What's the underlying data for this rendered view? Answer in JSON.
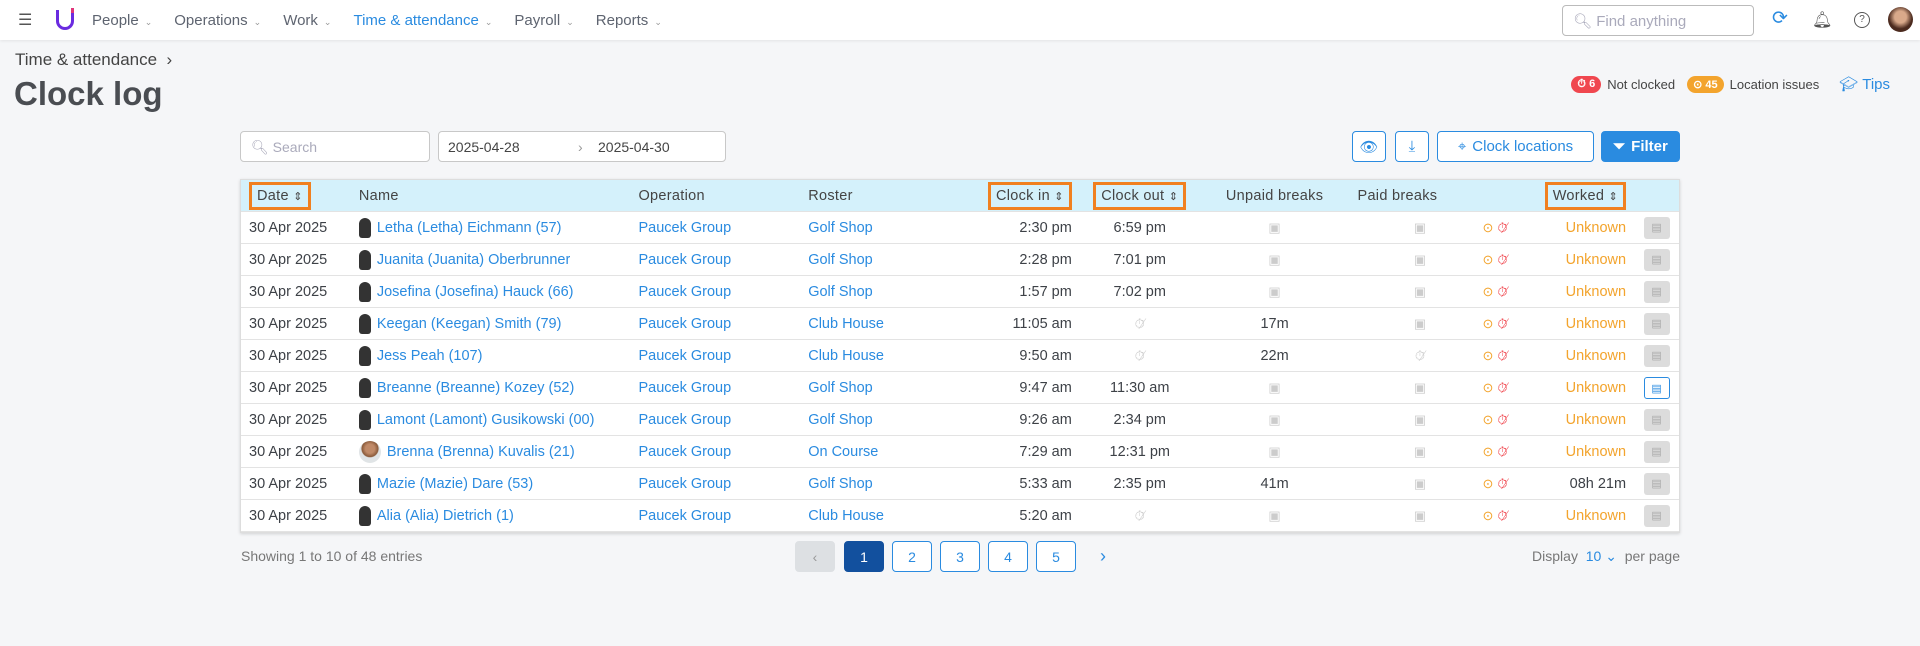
{
  "nav": {
    "items": [
      {
        "label": "People"
      },
      {
        "label": "Operations"
      },
      {
        "label": "Work"
      },
      {
        "label": "Time & attendance",
        "active": true
      },
      {
        "label": "Payroll"
      },
      {
        "label": "Reports"
      }
    ],
    "search_placeholder": "Find anything"
  },
  "breadcrumb": "Time & attendance",
  "page_title": "Clock log",
  "status": {
    "not_clocked_count": "6",
    "not_clocked_label": "Not clocked",
    "location_count": "45",
    "location_label": "Location issues",
    "tips": "Tips"
  },
  "toolbar": {
    "search_placeholder": "Search",
    "date_from": "2025-04-28",
    "date_to": "2025-04-30",
    "clock_locations": "Clock locations",
    "filter": "Filter"
  },
  "columns": [
    "Date",
    "Name",
    "Operation",
    "Roster",
    "Clock in",
    "Clock out",
    "Unpaid breaks",
    "Paid breaks",
    "Worked"
  ],
  "rows": [
    {
      "date": "30 Apr 2025",
      "name": "Letha (Letha) Eichmann (57)",
      "operation": "Paucek Group",
      "roster": "Golf Shop",
      "clock_in": "2:30 pm",
      "clock_out": "6:59 pm",
      "unpaid": "",
      "worked": "Unknown"
    },
    {
      "date": "30 Apr 2025",
      "name": "Juanita (Juanita) Oberbrunner",
      "operation": "Paucek Group",
      "roster": "Golf Shop",
      "clock_in": "2:28 pm",
      "clock_out": "7:01 pm",
      "unpaid": "",
      "worked": "Unknown"
    },
    {
      "date": "30 Apr 2025",
      "name": "Josefina (Josefina) Hauck (66)",
      "operation": "Paucek Group",
      "roster": "Golf Shop",
      "clock_in": "1:57 pm",
      "clock_out": "7:02 pm",
      "unpaid": "",
      "worked": "Unknown"
    },
    {
      "date": "30 Apr 2025",
      "name": "Keegan (Keegan) Smith (79)",
      "operation": "Paucek Group",
      "roster": "Club House",
      "clock_in": "11:05 am",
      "clock_out": "",
      "unpaid": "17m",
      "worked": "Unknown"
    },
    {
      "date": "30 Apr 2025",
      "name": "Jess Peah (107)",
      "operation": "Paucek Group",
      "roster": "Club House",
      "clock_in": "9:50 am",
      "clock_out": "",
      "unpaid": "22m",
      "worked": "Unknown"
    },
    {
      "date": "30 Apr 2025",
      "name": "Breanne (Breanne) Kozey (52)",
      "operation": "Paucek Group",
      "roster": "Golf Shop",
      "clock_in": "9:47 am",
      "clock_out": "11:30 am",
      "unpaid": "",
      "worked": "Unknown",
      "active": true
    },
    {
      "date": "30 Apr 2025",
      "name": "Lamont (Lamont) Gusikowski (00)",
      "operation": "Paucek Group",
      "roster": "Golf Shop",
      "clock_in": "9:26 am",
      "clock_out": "2:34 pm",
      "unpaid": "",
      "worked": "Unknown"
    },
    {
      "date": "30 Apr 2025",
      "name": "Brenna (Brenna) Kuvalis (21)",
      "operation": "Paucek Group",
      "roster": "On Course",
      "clock_in": "7:29 am",
      "clock_out": "12:31 pm",
      "unpaid": "",
      "worked": "Unknown",
      "photo": true
    },
    {
      "date": "30 Apr 2025",
      "name": "Mazie (Mazie) Dare (53)",
      "operation": "Paucek Group",
      "roster": "Golf Shop",
      "clock_in": "5:33 am",
      "clock_out": "2:35 pm",
      "unpaid": "41m",
      "worked": "08h 21m"
    },
    {
      "date": "30 Apr 2025",
      "name": "Alia (Alia) Dietrich (1)",
      "operation": "Paucek Group",
      "roster": "Club House",
      "clock_in": "5:20 am",
      "clock_out": "",
      "unpaid": "",
      "worked": "Unknown"
    }
  ],
  "footer": {
    "showing": "Showing 1 to 10 of 48 entries",
    "pages": [
      "1",
      "2",
      "3",
      "4",
      "5"
    ],
    "display": "Display",
    "per_page_value": "10",
    "per_page": "per page"
  },
  "colors": {
    "accent": "#2a8be0",
    "highlight": "#f0801f",
    "warning": "#f3a42d",
    "danger": "#f0474f"
  }
}
